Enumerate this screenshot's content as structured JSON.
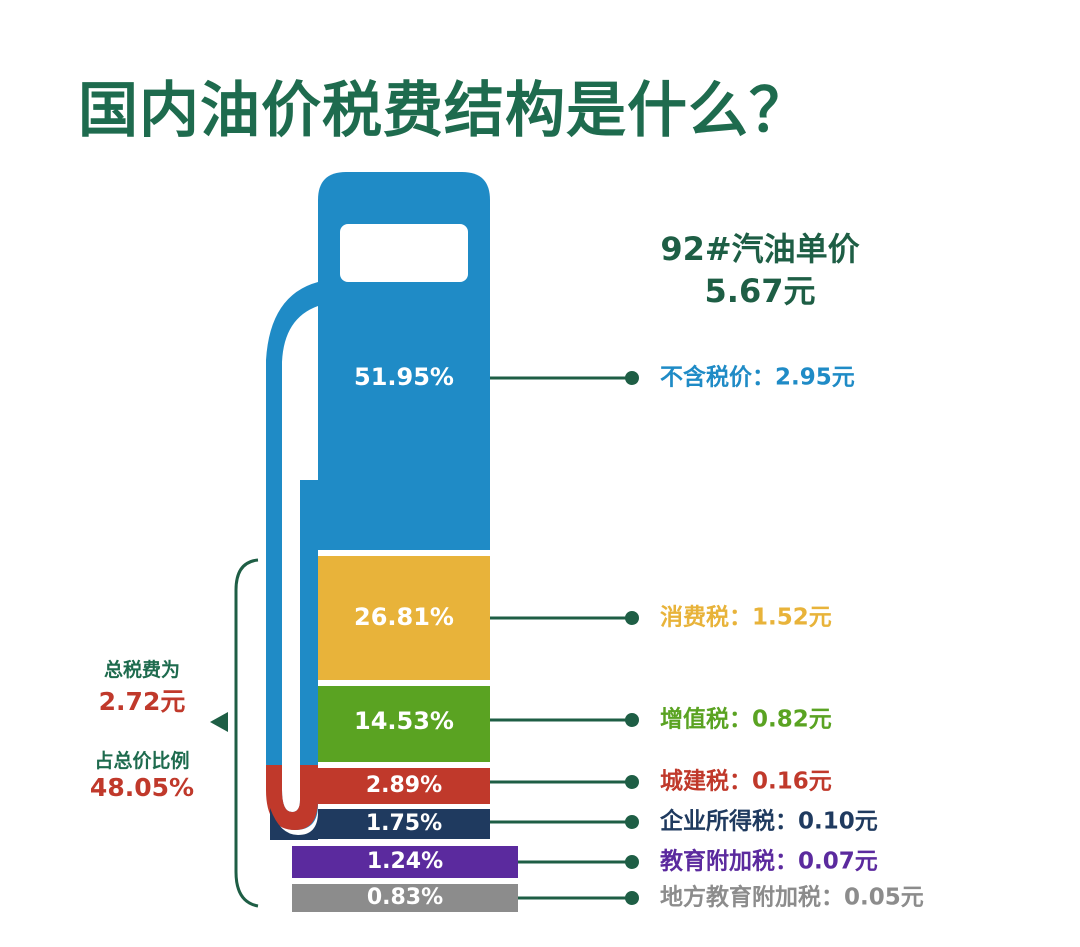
{
  "title": "国内油价税费结构是什么？",
  "header": {
    "line1": "92#汽油单价",
    "line2": "5.67元"
  },
  "summary": {
    "total_label": "总税费为",
    "total_value": "2.72元",
    "share_label": "占总价比例",
    "share_value": "48.05%"
  },
  "colors": {
    "title": "#1e6b4e",
    "pump_body": "#1f8bc6",
    "connector": "#1e5e45",
    "accent_red": "#c0392b"
  },
  "chart_data": {
    "type": "bar",
    "title": "国内油价税费结构是什么？",
    "total_price": 5.67,
    "unit": "元",
    "categories": [
      "不含税价",
      "消费税",
      "增值税",
      "城建税",
      "企业所得税",
      "教育附加税",
      "地方教育附加税"
    ],
    "values": [
      2.95,
      1.52,
      0.82,
      0.16,
      0.1,
      0.07,
      0.05
    ],
    "percent_labels": [
      "51.95%",
      "26.81%",
      "14.53%",
      "2.89%",
      "1.75%",
      "1.24%",
      "0.83%"
    ],
    "legend_labels": [
      "不含税价：2.95元",
      "消费税：1.52元",
      "增值税：0.82元",
      "城建税：0.16元",
      "企业所得税：0.10元",
      "教育附加税：0.07元",
      "地方教育附加税：0.05元"
    ],
    "colors": [
      "#1f8bc6",
      "#e8b33a",
      "#5aa322",
      "#c0392b",
      "#1f3a5f",
      "#5b2a9e",
      "#8c8c8c"
    ]
  }
}
